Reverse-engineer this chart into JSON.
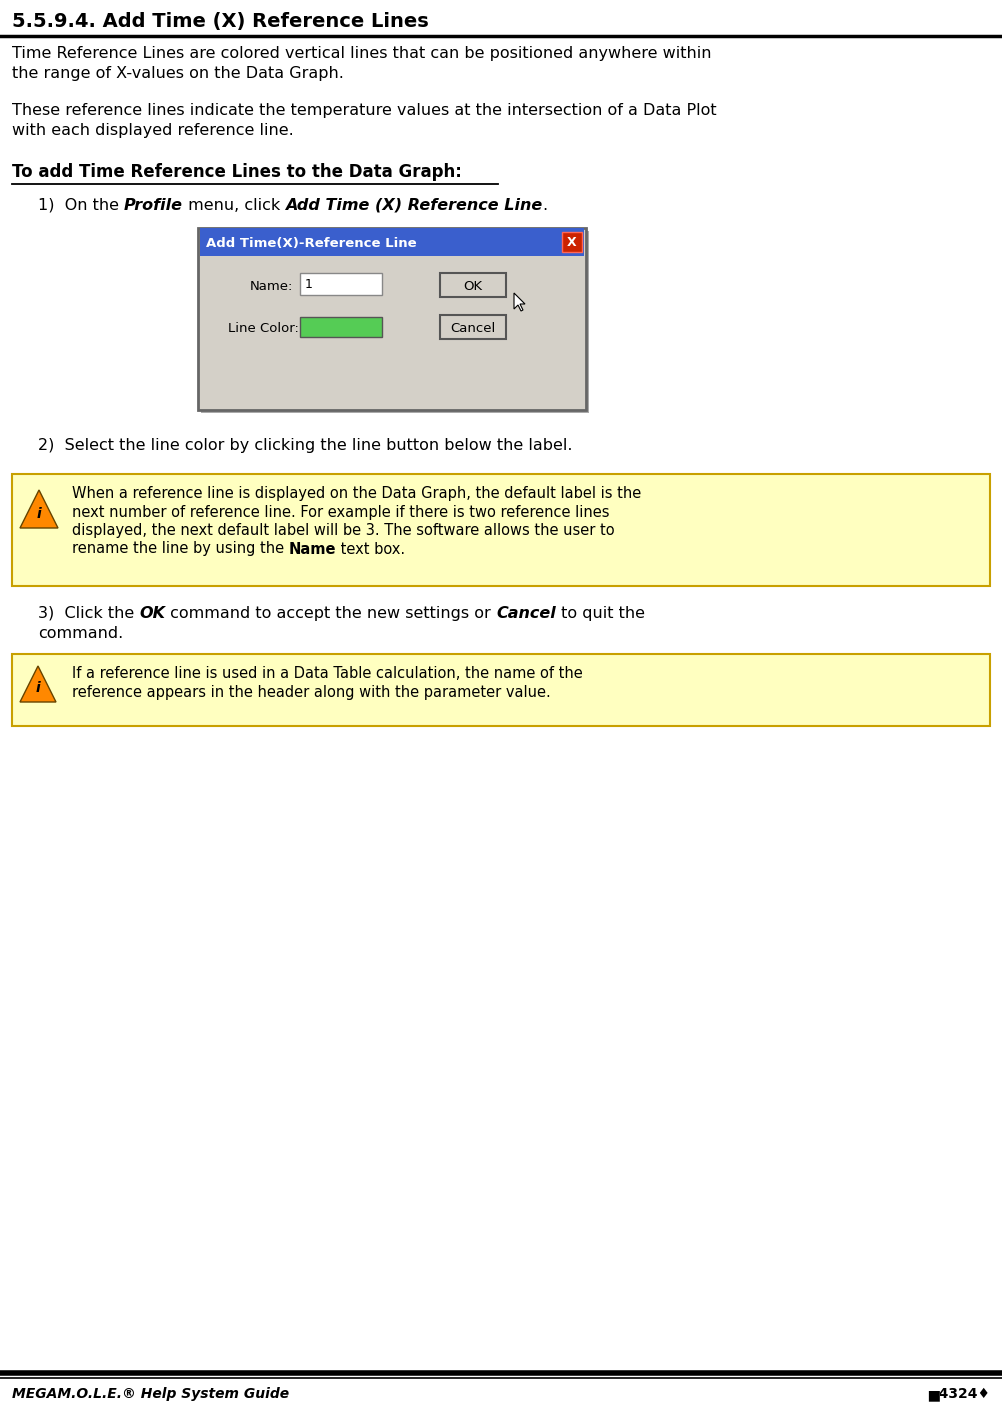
{
  "title": "5.5.9.4. Add Time (X) Reference Lines",
  "body_text_1": "Time Reference Lines are colored vertical lines that can be positioned anywhere within\nthe range of X-values on the Data Graph.",
  "body_text_2": "These reference lines indicate the temperature values at the intersection of a Data Plot\nwith each displayed reference line.",
  "section_header": "To add Time Reference Lines to the Data Graph:",
  "step1_pre": "1)  On the ",
  "step1_bold1": "Profile",
  "step1_mid": " menu, click ",
  "step1_bold2": "Add Time (X) Reference Line",
  "step1_end": ".",
  "step2": "2)  Select the line color by clicking the line button below the label.",
  "step3_pre": "3)  Click the ",
  "step3_bold1": "OK",
  "step3_mid": " command to accept the new settings or ",
  "step3_bold2": "Cancel",
  "step3_end": " to quit the",
  "step3_cont": "command.",
  "note1_line1": "When a reference line is displayed on the Data Graph, the default label is the",
  "note1_line2": "next number of reference line. For example if there is two reference lines",
  "note1_line3": "displayed, the next default label will be 3. The software allows the user to",
  "note1_line4_pre": "rename the line by using the ",
  "note1_line4_bold": "Name",
  "note1_line4_end": " text box.",
  "note2_line1": "If a reference line is used in a Data Table calculation, the name of the",
  "note2_line2": "reference appears in the header along with the parameter value.",
  "dialog_title_text": "Add Time(X)-Reference Line",
  "dialog_name_label": "Name:",
  "dialog_name_value": "1",
  "dialog_ok": "OK",
  "dialog_cancel": "Cancel",
  "dialog_line_color_label": "Line Color:",
  "footer_left": "MEGAM.O.L.E.® Help System Guide",
  "footer_right": "▆4324♦",
  "bg_color": "#ffffff",
  "note_bg": "#ffffc0",
  "note_border": "#c8a000",
  "dialog_title_bg": "#3a5fcd",
  "dialog_body_bg": "#d4d0c8",
  "dialog_title_color": "#ffffff",
  "dialog_close_bg": "#cc2200",
  "dialog_line_green": "#55cc55"
}
